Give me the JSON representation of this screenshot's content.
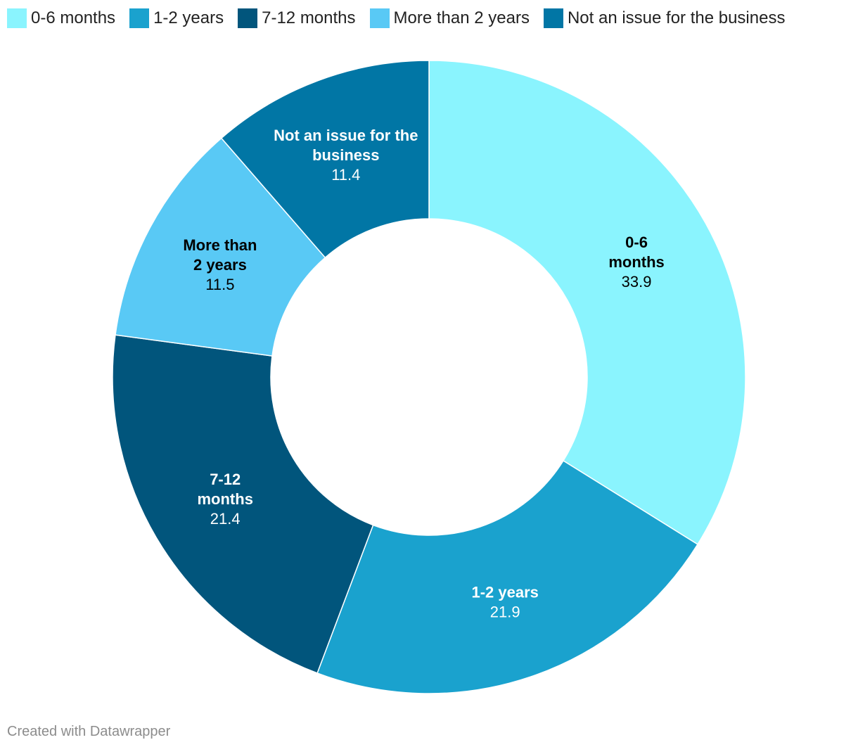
{
  "chart_data": {
    "type": "donut",
    "slices": [
      {
        "label": "0-6 months",
        "value": 33.9,
        "color": "#8af4fe",
        "text_color": "#000000",
        "label_lines": [
          "0-6",
          "months"
        ]
      },
      {
        "label": "1-2 years",
        "value": 21.9,
        "color": "#1aa2ce",
        "text_color": "#ffffff",
        "label_lines": [
          "1-2 years"
        ]
      },
      {
        "label": "7-12 months",
        "value": 21.4,
        "color": "#01557c",
        "text_color": "#ffffff",
        "label_lines": [
          "7-12",
          "months"
        ]
      },
      {
        "label": "More than 2 years",
        "value": 11.5,
        "color": "#59c9f5",
        "text_color": "#000000",
        "label_lines": [
          "More than",
          "2 years"
        ]
      },
      {
        "label": "Not an issue for the business",
        "value": 11.4,
        "color": "#0176a5",
        "text_color": "#ffffff",
        "label_lines": [
          "Not an issue for the",
          "business"
        ]
      }
    ],
    "legend": [
      {
        "label": "0-6 months",
        "color": "#8af4fe"
      },
      {
        "label": "1-2 years",
        "color": "#1aa2ce"
      },
      {
        "label": "7-12 months",
        "color": "#01557c"
      },
      {
        "label": "More than 2 years",
        "color": "#59c9f5"
      },
      {
        "label": "Not an issue for the business",
        "color": "#0176a5"
      }
    ],
    "legend_position": "top-left",
    "start_angle": "top",
    "direction": "clockwise"
  },
  "footer": {
    "credit": "Created with Datawrapper"
  }
}
